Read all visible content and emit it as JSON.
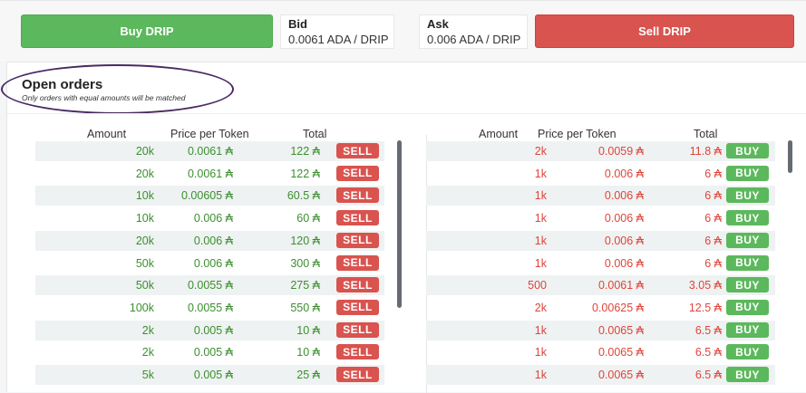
{
  "toolbar": {
    "buy_label": "Buy DRIP",
    "sell_label": "Sell DRIP",
    "bid_label": "Bid",
    "bid_value": "0.0061 ADA / DRIP",
    "ask_label": "Ask",
    "ask_value": "0.006 ADA / DRIP"
  },
  "orders": {
    "title": "Open orders",
    "subtitle": "Only orders with equal amounts will be matched",
    "headers": {
      "amount": "Amount",
      "price": "Price per Token",
      "total": "Total"
    },
    "sell_action": "SELL",
    "buy_action": "BUY",
    "left": [
      {
        "amount": "20k",
        "price": "0.0061 ₳",
        "total": "122 ₳"
      },
      {
        "amount": "20k",
        "price": "0.0061 ₳",
        "total": "122 ₳"
      },
      {
        "amount": "10k",
        "price": "0.00605 ₳",
        "total": "60.5 ₳"
      },
      {
        "amount": "10k",
        "price": "0.006 ₳",
        "total": "60 ₳"
      },
      {
        "amount": "20k",
        "price": "0.006 ₳",
        "total": "120 ₳"
      },
      {
        "amount": "50k",
        "price": "0.006 ₳",
        "total": "300 ₳"
      },
      {
        "amount": "50k",
        "price": "0.0055 ₳",
        "total": "275 ₳"
      },
      {
        "amount": "100k",
        "price": "0.0055 ₳",
        "total": "550 ₳"
      },
      {
        "amount": "2k",
        "price": "0.005 ₳",
        "total": "10 ₳"
      },
      {
        "amount": "2k",
        "price": "0.005 ₳",
        "total": "10 ₳"
      },
      {
        "amount": "5k",
        "price": "0.005 ₳",
        "total": "25 ₳"
      }
    ],
    "right": [
      {
        "amount": "2k",
        "price": "0.0059 ₳",
        "total": "11.8 ₳"
      },
      {
        "amount": "1k",
        "price": "0.006 ₳",
        "total": "6 ₳"
      },
      {
        "amount": "1k",
        "price": "0.006 ₳",
        "total": "6 ₳"
      },
      {
        "amount": "1k",
        "price": "0.006 ₳",
        "total": "6 ₳"
      },
      {
        "amount": "1k",
        "price": "0.006 ₳",
        "total": "6 ₳"
      },
      {
        "amount": "1k",
        "price": "0.006 ₳",
        "total": "6 ₳"
      },
      {
        "amount": "500",
        "price": "0.0061 ₳",
        "total": "3.05 ₳"
      },
      {
        "amount": "2k",
        "price": "0.00625 ₳",
        "total": "12.5 ₳"
      },
      {
        "amount": "1k",
        "price": "0.0065 ₳",
        "total": "6.5 ₳"
      },
      {
        "amount": "1k",
        "price": "0.0065 ₳",
        "total": "6.5 ₳"
      },
      {
        "amount": "1k",
        "price": "0.0065 ₳",
        "total": "6.5 ₳"
      }
    ]
  },
  "colors": {
    "buy": "#5cb85c",
    "sell": "#d9534f",
    "green_text": "#3c8f2e",
    "red_text": "#e0443a",
    "annotation": "#4a2a63"
  }
}
